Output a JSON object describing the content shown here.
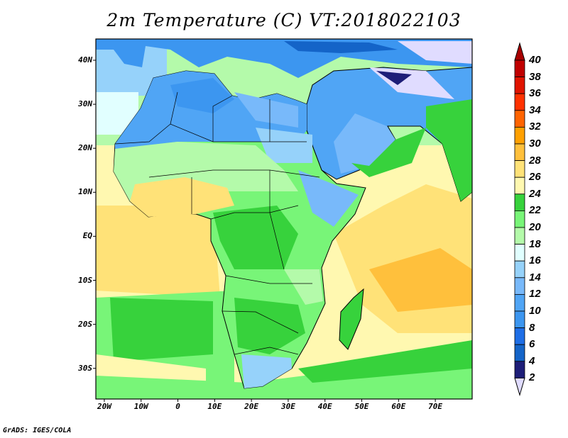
{
  "title": "2m Temperature (C) VT:2018022103",
  "x_axis_labels": [
    "20W",
    "10W",
    "0",
    "10E",
    "20E",
    "30E",
    "40E",
    "50E",
    "60E",
    "70E"
  ],
  "y_axis_labels": [
    "40N",
    "30N",
    "20N",
    "10N",
    "EQ",
    "10S",
    "20S",
    "30S"
  ],
  "colorbar": {
    "labels": [
      "40",
      "38",
      "36",
      "34",
      "32",
      "30",
      "28",
      "26",
      "24",
      "22",
      "20",
      "18",
      "16",
      "14",
      "12",
      "10",
      "8",
      "6",
      "4",
      "2"
    ],
    "colors_top_to_bottom": [
      "#a80000",
      "#c00000",
      "#e01400",
      "#ff3200",
      "#ff6400",
      "#ffa000",
      "#ffc03c",
      "#ffe278",
      "#fff8b0",
      "#37d23c",
      "#78f578",
      "#b4faaa",
      "#e1ffff",
      "#96d2fa",
      "#78b9fa",
      "#50a5f5",
      "#3c96f0",
      "#1e6ee6",
      "#1464c8",
      "#1e1e78",
      "#e0dcff"
    ]
  },
  "footer": "GrADS: IGES/COLA"
}
